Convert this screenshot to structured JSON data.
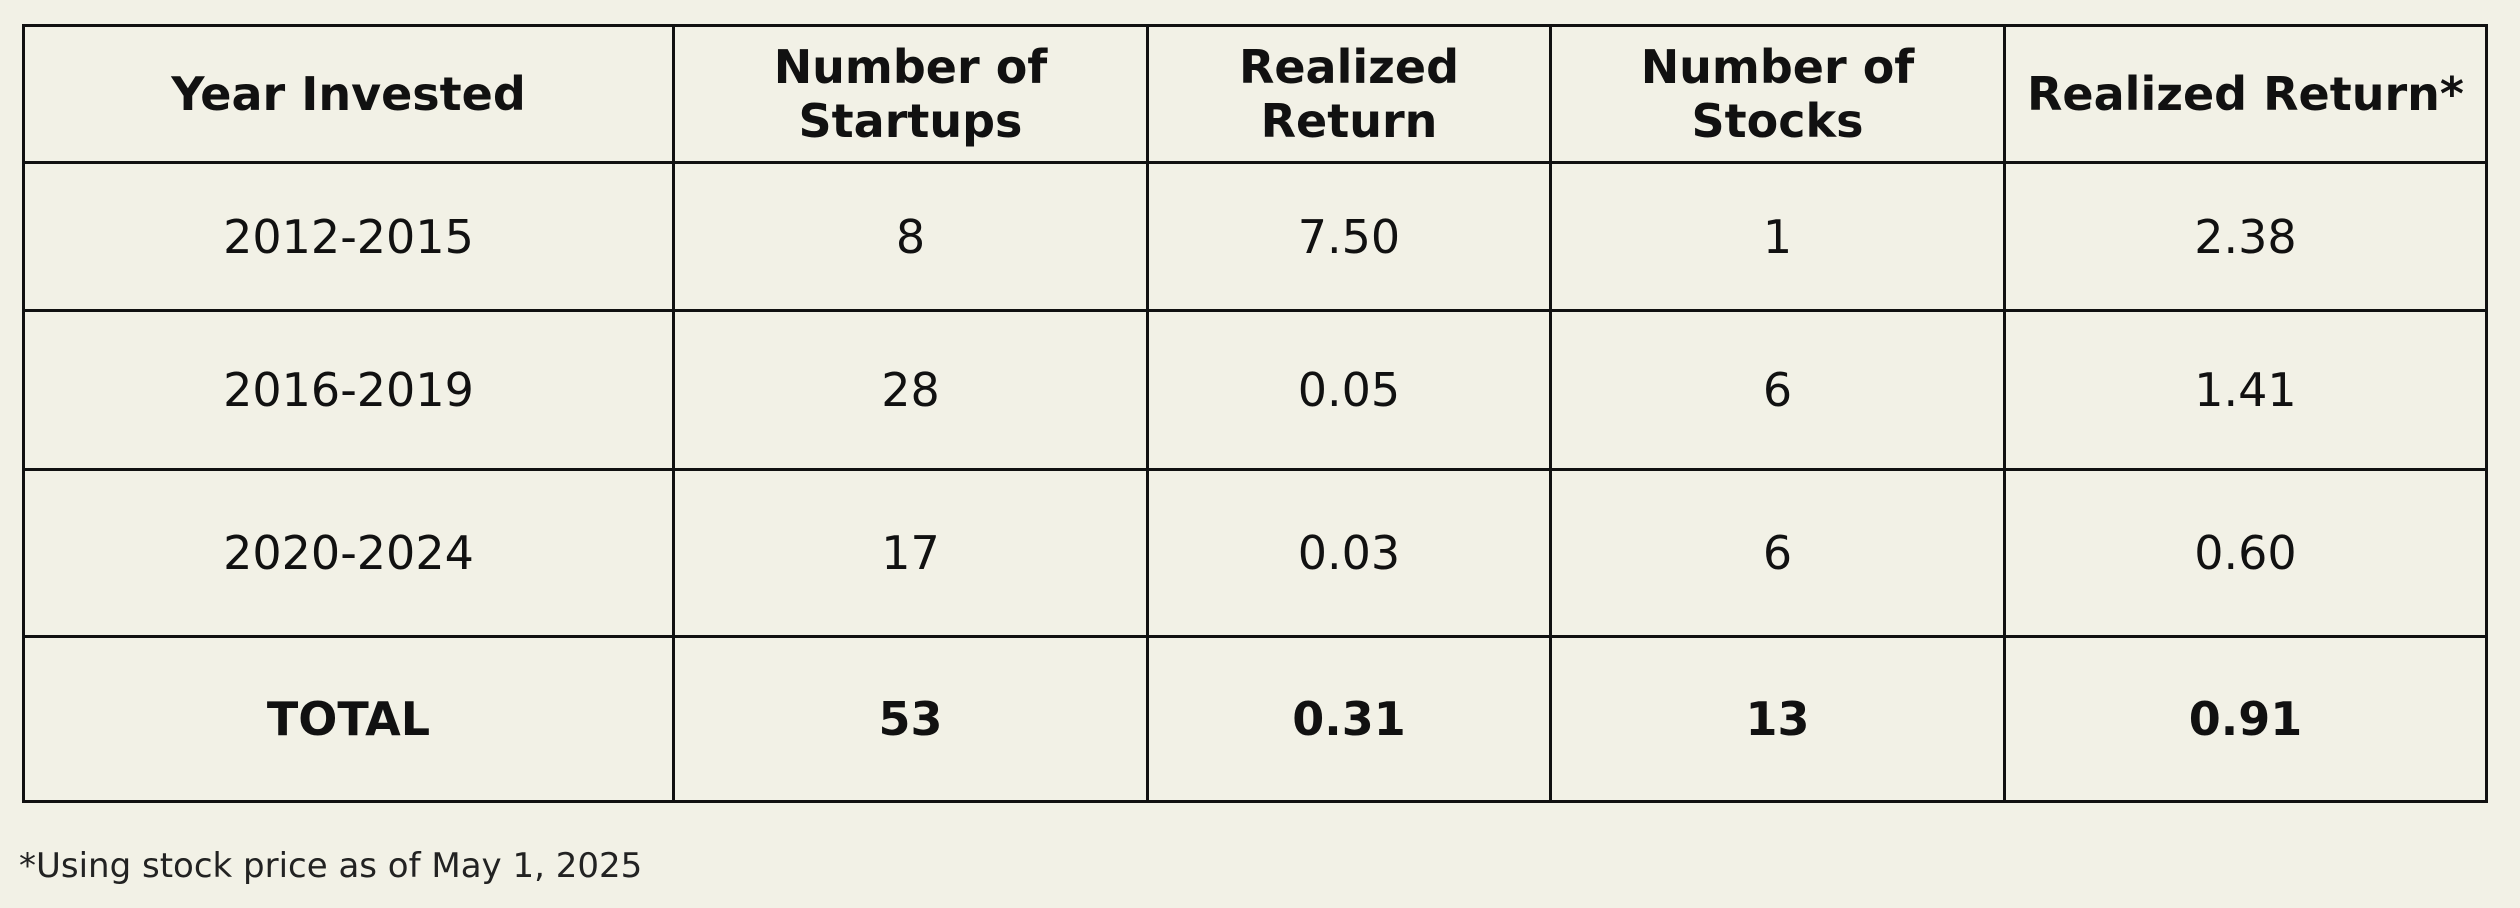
{
  "table": {
    "header": [
      "Year Invested",
      "Number of Startups",
      "Realized Return",
      "Number of Stocks",
      "Realized Return*"
    ],
    "rows": [
      [
        "2012-2015",
        "8",
        "7.50",
        "1",
        "2.38"
      ],
      [
        "2016-2019",
        "28",
        "0.05",
        "6",
        "1.41"
      ],
      [
        "2020-2024",
        "17",
        "0.03",
        "6",
        "0.60"
      ]
    ],
    "total": [
      "TOTAL",
      "53",
      "0.31",
      "13",
      "0.91"
    ]
  },
  "footnote": "*Using stock price as of May 1, 2025"
}
